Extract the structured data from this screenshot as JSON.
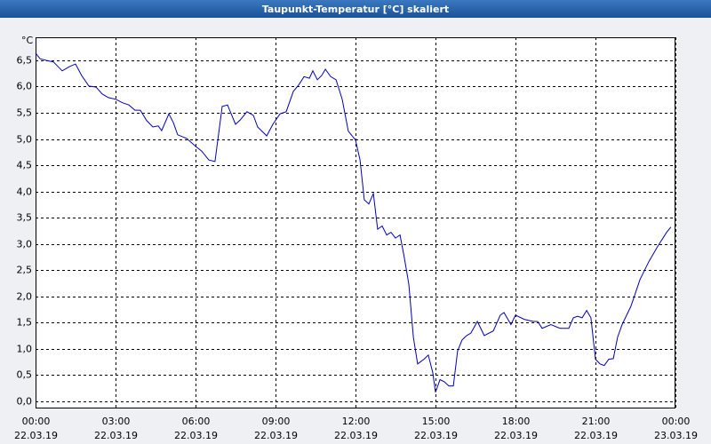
{
  "chart_data": {
    "type": "line",
    "title": "Taupunkt-Temperatur [°C] skaliert",
    "y_unit": "°C",
    "xlim": [
      0,
      24
    ],
    "xticks": [
      {
        "value": 0,
        "label": "00:00",
        "date": "22.03.19"
      },
      {
        "value": 3,
        "label": "03:00",
        "date": "22.03.19"
      },
      {
        "value": 6,
        "label": "06:00",
        "date": "22.03.19"
      },
      {
        "value": 9,
        "label": "09:00",
        "date": "22.03.19"
      },
      {
        "value": 12,
        "label": "12:00",
        "date": "22.03.19"
      },
      {
        "value": 15,
        "label": "15:00",
        "date": "22.03.19"
      },
      {
        "value": 18,
        "label": "18:00",
        "date": "22.03.19"
      },
      {
        "value": 21,
        "label": "21:00",
        "date": "22.03.19"
      },
      {
        "value": 24,
        "label": "00:00",
        "date": "23.03.19"
      }
    ],
    "ylim": [
      -0.14,
      6.94
    ],
    "yticks": [
      {
        "value": 0,
        "label": "0,0"
      },
      {
        "value": 0.5,
        "label": "0,5"
      },
      {
        "value": 1,
        "label": "1,0"
      },
      {
        "value": 1.5,
        "label": "1,5"
      },
      {
        "value": 2,
        "label": "2,0"
      },
      {
        "value": 2.5,
        "label": "2,5"
      },
      {
        "value": 3,
        "label": "3,0"
      },
      {
        "value": 3.5,
        "label": "3,5"
      },
      {
        "value": 4,
        "label": "4,0"
      },
      {
        "value": 4.5,
        "label": "4,5"
      },
      {
        "value": 5,
        "label": "5,0"
      },
      {
        "value": 5.5,
        "label": "5,5"
      },
      {
        "value": 6,
        "label": "6,0"
      },
      {
        "value": 6.5,
        "label": "6,5"
      }
    ],
    "grid": true,
    "x": [
      0,
      0.17,
      0.4,
      0.67,
      1,
      1.27,
      1.5,
      1.73,
      2,
      2.27,
      2.5,
      2.73,
      3,
      3.27,
      3.5,
      3.73,
      3.93,
      4.17,
      4.4,
      4.6,
      4.73,
      5,
      5.17,
      5.33,
      5.67,
      6,
      6.23,
      6.5,
      6.73,
      7,
      7.2,
      7.5,
      7.67,
      7.93,
      8.17,
      8.33,
      8.67,
      8.9,
      9.17,
      9.4,
      9.67,
      9.87,
      10.07,
      10.27,
      10.4,
      10.57,
      10.73,
      10.87,
      11.07,
      11.27,
      11.5,
      11.73,
      12,
      12.17,
      12.33,
      12.5,
      12.67,
      12.83,
      13,
      13.17,
      13.33,
      13.5,
      13.67,
      13.83,
      14,
      14.17,
      14.33,
      14.57,
      14.73,
      14.9,
      15,
      15.17,
      15.33,
      15.5,
      15.67,
      15.83,
      16,
      16.17,
      16.33,
      16.57,
      16.83,
      17.17,
      17.43,
      17.57,
      17.83,
      18,
      18.33,
      18.67,
      18.83,
      19,
      19.33,
      19.67,
      20,
      20.17,
      20.33,
      20.5,
      20.67,
      20.83,
      21,
      21.17,
      21.33,
      21.5,
      21.67,
      21.83,
      22,
      22.33,
      22.67,
      23,
      23.33,
      23.67,
      23.83
    ],
    "series": [
      {
        "color": "#0000c0",
        "values": [
          6.64,
          6.53,
          6.5,
          6.47,
          6.3,
          6.38,
          6.43,
          6.21,
          6.01,
          5.99,
          5.86,
          5.79,
          5.76,
          5.69,
          5.65,
          5.55,
          5.55,
          5.35,
          5.23,
          5.25,
          5.16,
          5.48,
          5.31,
          5.08,
          5.01,
          4.86,
          4.77,
          4.6,
          4.57,
          5.62,
          5.65,
          5.28,
          5.36,
          5.52,
          5.45,
          5.23,
          5.06,
          5.28,
          5.48,
          5.52,
          5.91,
          6.03,
          6.19,
          6.16,
          6.3,
          6.13,
          6.21,
          6.33,
          6.19,
          6.13,
          5.76,
          5.15,
          4.98,
          4.6,
          3.84,
          3.76,
          3.96,
          3.28,
          3.34,
          3.17,
          3.22,
          3.11,
          3.17,
          2.74,
          2.23,
          1.22,
          0.71,
          0.8,
          0.88,
          0.54,
          0.17,
          0.41,
          0.37,
          0.29,
          0.29,
          0.96,
          1.17,
          1.25,
          1.3,
          1.52,
          1.25,
          1.34,
          1.64,
          1.69,
          1.46,
          1.64,
          1.56,
          1.52,
          1.52,
          1.39,
          1.46,
          1.39,
          1.39,
          1.59,
          1.62,
          1.59,
          1.73,
          1.59,
          0.8,
          0.71,
          0.68,
          0.8,
          0.81,
          1.22,
          1.46,
          1.81,
          2.32,
          2.66,
          2.95,
          3.22,
          3.32
        ]
      }
    ]
  }
}
